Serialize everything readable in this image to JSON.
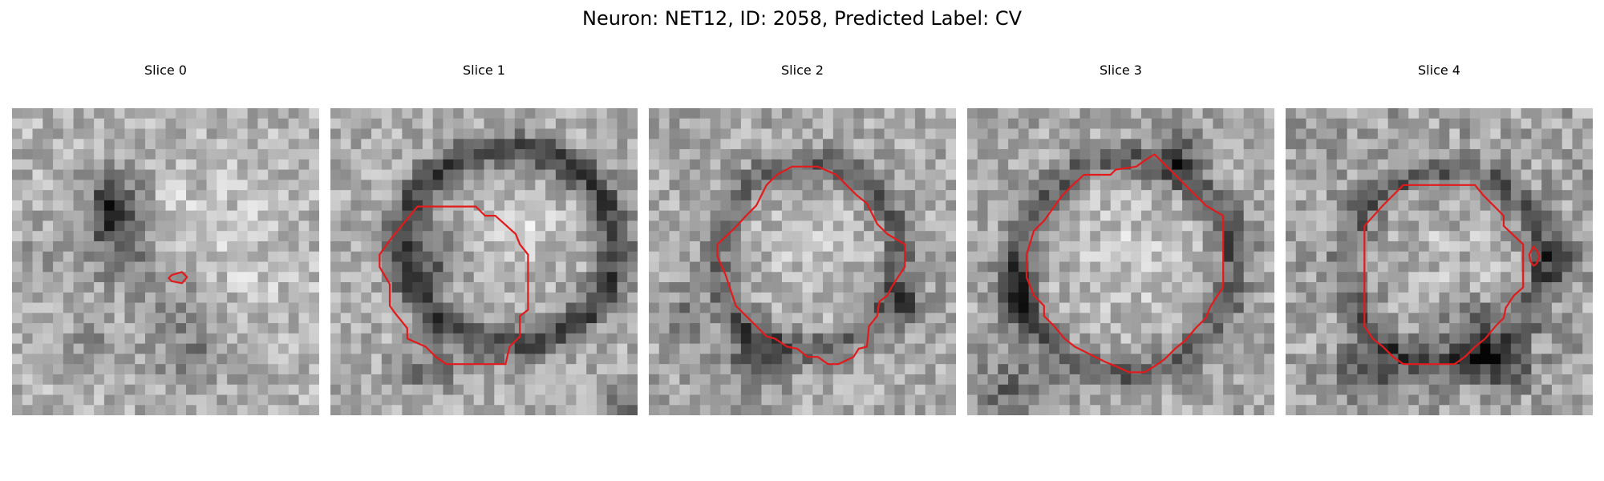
{
  "figure": {
    "title": "Neuron: NET12, ID: 2058, Predicted Label: CV",
    "contour_color": "#e31a1c",
    "colormap": "gray"
  },
  "panels": [
    {
      "title": "Slice 0"
    },
    {
      "title": "Slice 1"
    },
    {
      "title": "Slice 2"
    },
    {
      "title": "Slice 3"
    },
    {
      "title": "Slice 4"
    }
  ]
}
